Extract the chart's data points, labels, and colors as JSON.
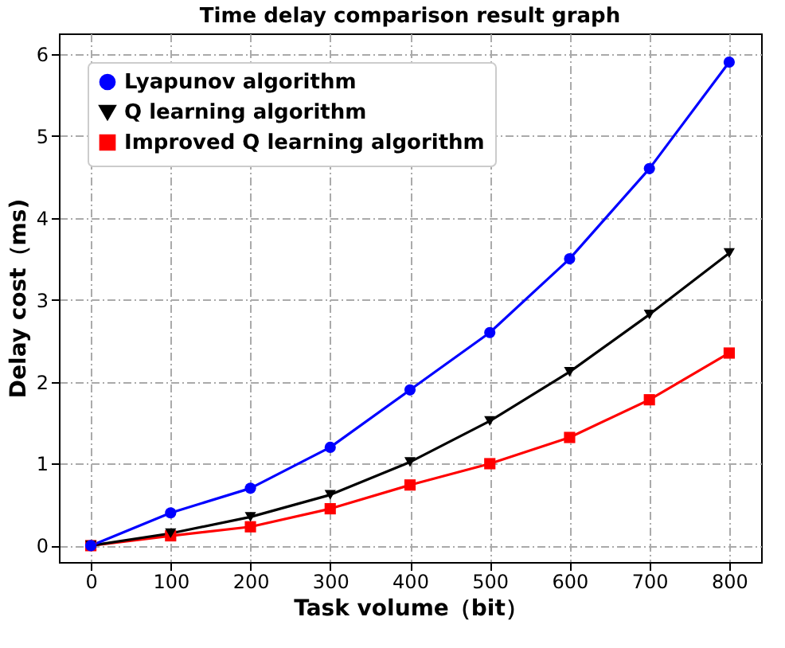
{
  "chart_data": {
    "type": "line",
    "title": "Time delay comparison result graph",
    "xlabel": "Task volume（bit）",
    "ylabel": "Delay cost（ms)",
    "x": [
      0,
      100,
      200,
      300,
      400,
      500,
      600,
      700,
      800
    ],
    "series": [
      {
        "name": "Lyapunov algorithm",
        "color": "#0000ff",
        "marker": "circle",
        "values": [
          0,
          0.4,
          0.7,
          1.2,
          1.9,
          2.6,
          3.5,
          4.6,
          5.9
        ]
      },
      {
        "name": "Q learning algorithm",
        "color": "#000000",
        "marker": "triangle",
        "values": [
          0,
          0.15,
          0.35,
          0.62,
          1.02,
          1.52,
          2.12,
          2.82,
          3.57
        ]
      },
      {
        "name": "Improved Q learning algorithm",
        "color": "#ff0000",
        "marker": "square",
        "values": [
          0,
          0.12,
          0.23,
          0.45,
          0.74,
          1.0,
          1.32,
          1.78,
          2.35
        ]
      }
    ],
    "xlim": [
      -40,
      840
    ],
    "xticks": [
      0,
      100,
      200,
      300,
      400,
      500,
      600,
      700,
      800
    ],
    "ylim": [
      -0.2,
      6.25
    ],
    "yticks": [
      0,
      1,
      2,
      3,
      4,
      5,
      6
    ],
    "grid": true,
    "legend": "top left",
    "line_style": "solid"
  }
}
